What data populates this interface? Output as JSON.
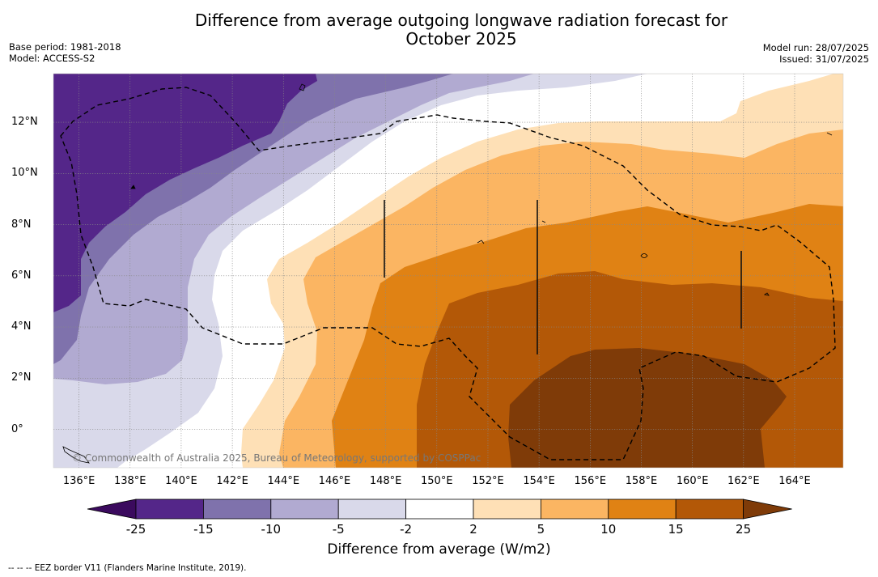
{
  "header": {
    "title_line1": "Difference from average outgoing longwave radiation forecast for",
    "title_line2": "October 2025",
    "base_period": "Base period: 1981-2018",
    "model": "Model: ACCESS-S2",
    "model_run": "Model run: 28/07/2025",
    "issued": "Issued: 31/07/2025"
  },
  "map": {
    "region": "Western Pacific (Micronesia)",
    "lat_labels": [
      "12°N",
      "10°N",
      "8°N",
      "6°N",
      "4°N",
      "2°N",
      "0°"
    ],
    "lon_labels": [
      "136°E",
      "138°E",
      "140°E",
      "142°E",
      "144°E",
      "146°E",
      "148°E",
      "150°E",
      "152°E",
      "154°E",
      "156°E",
      "158°E",
      "160°E",
      "162°E",
      "164°E"
    ],
    "copyright": "© Commonwealth of Australia 2025, Bureau of Meteorology, supported by COSPPac"
  },
  "colorbar": {
    "labels": [
      "-25",
      "-15",
      "-10",
      "-5",
      "-2",
      "2",
      "5",
      "10",
      "15",
      "25"
    ],
    "colors": [
      "#3b0a5e",
      "#542689",
      "#7f72ac",
      "#b1aad1",
      "#d9d9ea",
      "#ffffff",
      "#fee0b6",
      "#fbb562",
      "#e08214",
      "#b35807",
      "#7f3b08"
    ],
    "title": "Difference from average (W/m2)"
  },
  "footer": {
    "legend": "--  --  -- EEZ border V11 (Flanders Marine Institute, 2019)."
  }
}
